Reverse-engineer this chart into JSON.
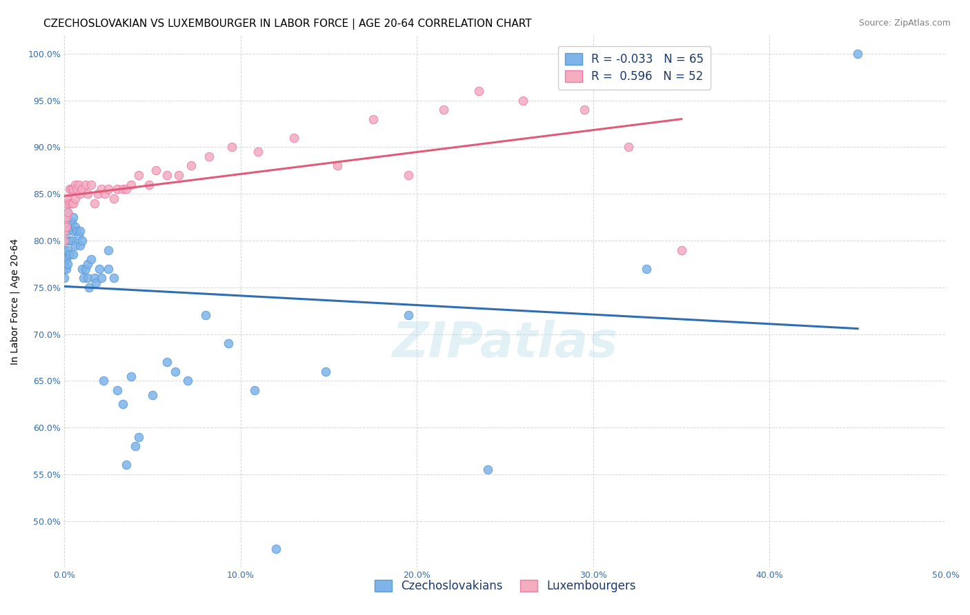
{
  "title": "CZECHOSLOVAKIAN VS LUXEMBOURGER IN LABOR FORCE | AGE 20-64 CORRELATION CHART",
  "source": "Source: ZipAtlas.com",
  "xlabel": "",
  "ylabel": "In Labor Force | Age 20-64",
  "xlim": [
    0.0,
    0.5
  ],
  "ylim": [
    0.45,
    1.02
  ],
  "x_ticks": [
    0.0,
    0.1,
    0.2,
    0.3,
    0.4,
    0.5
  ],
  "x_tick_labels": [
    "0.0%",
    "10.0%",
    "20.0%",
    "30.0%",
    "40.0%",
    "50.0%"
  ],
  "y_ticks": [
    0.5,
    0.55,
    0.6,
    0.65,
    0.7,
    0.75,
    0.8,
    0.85,
    0.9,
    0.95,
    1.0
  ],
  "y_tick_labels": [
    "50.0%",
    "55.0%",
    "60.0%",
    "65.0%",
    "70.0%",
    "75.0%",
    "80.0%",
    "85.0%",
    "90.0%",
    "95.0%",
    "100.0%"
  ],
  "czech_color": "#7EB4EA",
  "czech_edge_color": "#5B9BD5",
  "lux_color": "#F4ACBF",
  "lux_edge_color": "#E87DAB",
  "czech_line_color": "#2E6DB4",
  "lux_line_color": "#E05A7A",
  "watermark": "ZIPatlas",
  "R_czech": -0.033,
  "N_czech": 65,
  "R_lux": 0.596,
  "N_lux": 52,
  "czech_x": [
    0.0,
    0.0,
    0.0,
    0.0,
    0.0,
    0.0,
    0.0,
    0.001,
    0.001,
    0.001,
    0.001,
    0.001,
    0.002,
    0.002,
    0.002,
    0.002,
    0.003,
    0.003,
    0.003,
    0.004,
    0.004,
    0.005,
    0.005,
    0.005,
    0.006,
    0.006,
    0.007,
    0.008,
    0.009,
    0.009,
    0.01,
    0.01,
    0.011,
    0.012,
    0.013,
    0.013,
    0.014,
    0.015,
    0.017,
    0.018,
    0.02,
    0.021,
    0.022,
    0.025,
    0.025,
    0.028,
    0.03,
    0.033,
    0.035,
    0.038,
    0.04,
    0.042,
    0.05,
    0.058,
    0.063,
    0.07,
    0.08,
    0.093,
    0.108,
    0.12,
    0.148,
    0.195,
    0.24,
    0.33,
    0.45
  ],
  "czech_y": [
    0.8,
    0.79,
    0.785,
    0.78,
    0.775,
    0.77,
    0.76,
    0.82,
    0.8,
    0.785,
    0.78,
    0.77,
    0.83,
    0.81,
    0.79,
    0.775,
    0.815,
    0.8,
    0.785,
    0.82,
    0.8,
    0.825,
    0.81,
    0.785,
    0.815,
    0.795,
    0.81,
    0.805,
    0.81,
    0.795,
    0.8,
    0.77,
    0.76,
    0.77,
    0.775,
    0.76,
    0.75,
    0.78,
    0.76,
    0.755,
    0.77,
    0.76,
    0.65,
    0.79,
    0.77,
    0.76,
    0.64,
    0.625,
    0.56,
    0.655,
    0.58,
    0.59,
    0.635,
    0.67,
    0.66,
    0.65,
    0.72,
    0.69,
    0.64,
    0.47,
    0.66,
    0.72,
    0.555,
    0.77,
    1.0
  ],
  "lux_x": [
    0.0,
    0.0,
    0.0,
    0.001,
    0.001,
    0.001,
    0.002,
    0.002,
    0.003,
    0.003,
    0.004,
    0.004,
    0.005,
    0.005,
    0.006,
    0.006,
    0.007,
    0.008,
    0.009,
    0.01,
    0.012,
    0.013,
    0.015,
    0.017,
    0.019,
    0.021,
    0.023,
    0.025,
    0.028,
    0.03,
    0.033,
    0.035,
    0.038,
    0.042,
    0.048,
    0.052,
    0.058,
    0.065,
    0.072,
    0.082,
    0.095,
    0.11,
    0.13,
    0.155,
    0.175,
    0.195,
    0.215,
    0.235,
    0.26,
    0.295,
    0.32,
    0.35
  ],
  "lux_y": [
    0.82,
    0.81,
    0.8,
    0.84,
    0.825,
    0.815,
    0.845,
    0.83,
    0.855,
    0.84,
    0.855,
    0.84,
    0.855,
    0.84,
    0.86,
    0.845,
    0.855,
    0.86,
    0.85,
    0.855,
    0.86,
    0.85,
    0.86,
    0.84,
    0.85,
    0.855,
    0.85,
    0.855,
    0.845,
    0.855,
    0.855,
    0.855,
    0.86,
    0.87,
    0.86,
    0.875,
    0.87,
    0.87,
    0.88,
    0.89,
    0.9,
    0.895,
    0.91,
    0.88,
    0.93,
    0.87,
    0.94,
    0.96,
    0.95,
    0.94,
    0.9,
    0.79
  ],
  "background_color": "#FFFFFF",
  "grid_color": "#CCCCCC",
  "title_fontsize": 11,
  "axis_label_fontsize": 10,
  "tick_fontsize": 9,
  "legend_fontsize": 12,
  "source_fontsize": 9
}
